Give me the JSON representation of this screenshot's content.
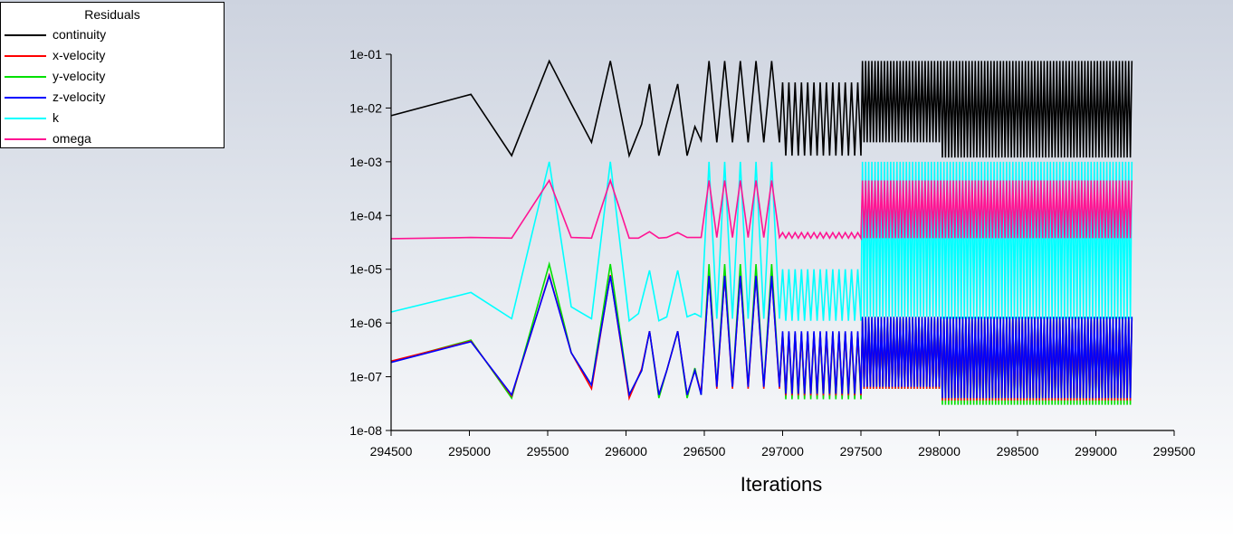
{
  "legend": {
    "title": "Residuals",
    "items": [
      {
        "label": "continuity",
        "color": "#000000"
      },
      {
        "label": "x-velocity",
        "color": "#ff0000"
      },
      {
        "label": "y-velocity",
        "color": "#00e000"
      },
      {
        "label": "z-velocity",
        "color": "#0000ff"
      },
      {
        "label": "k",
        "color": "#00ffff"
      },
      {
        "label": "omega",
        "color": "#ff1493"
      }
    ]
  },
  "chart_data": {
    "type": "line",
    "title": "Residuals",
    "xlabel": "Iterations",
    "ylabel": "",
    "yscale": "log",
    "xlim": [
      294500,
      299500
    ],
    "ylim": [
      1e-08,
      0.1
    ],
    "xticks": [
      "294500",
      "295000",
      "295500",
      "296000",
      "296500",
      "297000",
      "297500",
      "298000",
      "298500",
      "299000",
      "299500"
    ],
    "yticks": [
      "1e-01",
      "1e-02",
      "1e-03",
      "1e-04",
      "1e-05",
      "1e-06",
      "1e-07",
      "1e-08"
    ],
    "x_end": 299230,
    "series": [
      {
        "name": "continuity",
        "color": "#000000",
        "x": [
          294500,
          295010,
          295270,
          295510,
          295650,
          295780,
          295900,
          296020,
          296100,
          296150,
          296210,
          296260,
          296330,
          296390,
          296440,
          296480
        ],
        "values": [
          0.0072,
          0.018,
          0.0013,
          0.075,
          0.012,
          0.0023,
          0.075,
          0.0013,
          0.005,
          0.028,
          0.0013,
          0.005,
          0.028,
          0.0013,
          0.0045,
          0.0025
        ],
        "osc": [
          {
            "x0": 296480,
            "x1": 296980,
            "period": 100,
            "hi": 0.075,
            "lo": 0.0023
          },
          {
            "x0": 296980,
            "x1": 297500,
            "period": 40,
            "hi": 0.03,
            "lo": 0.0013
          },
          {
            "x0": 297500,
            "x1": 298000,
            "period": 20,
            "hi": 0.075,
            "lo": 0.0023
          },
          {
            "x0": 298000,
            "x1": 299230,
            "period": 20,
            "hi": 0.075,
            "lo": 0.0012
          }
        ]
      },
      {
        "name": "x-velocity",
        "color": "#ff0000",
        "x": [
          294500,
          295010,
          295270,
          295510,
          295650,
          295780,
          295900,
          296020,
          296100,
          296150,
          296210,
          296260,
          296330,
          296390,
          296440,
          296480
        ],
        "values": [
          1.95e-07,
          4.6e-07,
          4.4e-08,
          7.8e-06,
          2.8e-07,
          6e-08,
          7.8e-06,
          4e-08,
          1.4e-07,
          7e-07,
          4.6e-08,
          1.3e-07,
          7e-07,
          4.6e-08,
          1.3e-07,
          5e-08
        ],
        "osc": [
          {
            "x0": 296480,
            "x1": 296980,
            "period": 100,
            "hi": 7.5e-06,
            "lo": 6e-08
          },
          {
            "x0": 296980,
            "x1": 297500,
            "period": 40,
            "hi": 6.5e-07,
            "lo": 4.5e-08
          },
          {
            "x0": 297500,
            "x1": 298000,
            "period": 20,
            "hi": 1.2e-06,
            "lo": 6e-08
          },
          {
            "x0": 298000,
            "x1": 299230,
            "period": 20,
            "hi": 1.2e-06,
            "lo": 3.6e-08
          }
        ]
      },
      {
        "name": "y-velocity",
        "color": "#00e000",
        "x": [
          294500,
          295010,
          295270,
          295510,
          295650,
          295780,
          295900,
          296020,
          296100,
          296150,
          296210,
          296260,
          296330,
          296390,
          296440,
          296480
        ],
        "values": [
          1.9e-07,
          4.8e-07,
          4e-08,
          1.25e-05,
          2.8e-07,
          7e-08,
          1.25e-05,
          4.6e-08,
          1.3e-07,
          7e-07,
          4e-08,
          1.3e-07,
          7e-07,
          4e-08,
          1.45e-07,
          4.6e-08
        ],
        "osc": [
          {
            "x0": 296480,
            "x1": 296980,
            "period": 100,
            "hi": 1.25e-05,
            "lo": 6.5e-08
          },
          {
            "x0": 296980,
            "x1": 297500,
            "period": 40,
            "hi": 6.5e-07,
            "lo": 3.8e-08
          },
          {
            "x0": 297500,
            "x1": 298000,
            "period": 20,
            "hi": 1.3e-06,
            "lo": 6e-08
          },
          {
            "x0": 298000,
            "x1": 299230,
            "period": 20,
            "hi": 1.3e-06,
            "lo": 3e-08
          }
        ]
      },
      {
        "name": "z-velocity",
        "color": "#0000ff",
        "x": [
          294500,
          295010,
          295270,
          295510,
          295650,
          295780,
          295900,
          296020,
          296100,
          296150,
          296210,
          296260,
          296330,
          296390,
          296440,
          296480
        ],
        "values": [
          1.85e-07,
          4.5e-07,
          4.6e-08,
          7.5e-06,
          2.8e-07,
          7e-08,
          7.5e-06,
          4.6e-08,
          1.3e-07,
          7e-07,
          4.6e-08,
          1.3e-07,
          7e-07,
          4.6e-08,
          1.3e-07,
          4.6e-08
        ],
        "osc": [
          {
            "x0": 296480,
            "x1": 296980,
            "period": 100,
            "hi": 7.5e-06,
            "lo": 6.5e-08
          },
          {
            "x0": 296980,
            "x1": 297500,
            "period": 40,
            "hi": 7e-07,
            "lo": 4.8e-08
          },
          {
            "x0": 297500,
            "x1": 298000,
            "period": 20,
            "hi": 1.3e-06,
            "lo": 6.5e-08
          },
          {
            "x0": 298000,
            "x1": 299230,
            "period": 20,
            "hi": 1.3e-06,
            "lo": 4e-08
          }
        ]
      },
      {
        "name": "k",
        "color": "#00ffff",
        "x": [
          294500,
          295010,
          295270,
          295510,
          295650,
          295780,
          295900,
          296020,
          296080,
          296150,
          296210,
          296260,
          296330,
          296390,
          296440,
          296480
        ],
        "values": [
          1.6e-06,
          3.7e-06,
          1.2e-06,
          0.001,
          2e-06,
          1.2e-06,
          0.001,
          1.1e-06,
          1.5e-06,
          9.5e-06,
          1.1e-06,
          1.3e-06,
          9.5e-06,
          1.3e-06,
          1.5e-06,
          1.3e-06
        ],
        "osc": [
          {
            "x0": 296480,
            "x1": 296980,
            "period": 100,
            "hi": 0.001,
            "lo": 1.2e-06
          },
          {
            "x0": 296980,
            "x1": 297500,
            "period": 40,
            "hi": 1e-05,
            "lo": 1.1e-06
          },
          {
            "x0": 297500,
            "x1": 298000,
            "period": 20,
            "hi": 0.001,
            "lo": 1.3e-06
          },
          {
            "x0": 298000,
            "x1": 299230,
            "period": 20,
            "hi": 0.001,
            "lo": 1.2e-06
          }
        ]
      },
      {
        "name": "omega",
        "color": "#ff1493",
        "x": [
          294500,
          295010,
          295270,
          295510,
          295650,
          295780,
          295900,
          296020,
          296080,
          296150,
          296210,
          296260,
          296330,
          296390,
          296440,
          296480
        ],
        "values": [
          3.7e-05,
          3.9e-05,
          3.8e-05,
          0.00045,
          3.9e-05,
          3.8e-05,
          0.00045,
          3.8e-05,
          3.8e-05,
          5e-05,
          3.8e-05,
          3.9e-05,
          4.8e-05,
          3.9e-05,
          3.9e-05,
          3.9e-05
        ],
        "osc": [
          {
            "x0": 296480,
            "x1": 296980,
            "period": 100,
            "hi": 0.00045,
            "lo": 3.9e-05
          },
          {
            "x0": 296980,
            "x1": 297500,
            "period": 40,
            "hi": 4.8e-05,
            "lo": 3.8e-05
          },
          {
            "x0": 297500,
            "x1": 298000,
            "period": 20,
            "hi": 0.00045,
            "lo": 3.8e-05
          },
          {
            "x0": 298000,
            "x1": 299230,
            "period": 20,
            "hi": 0.00045,
            "lo": 3.8e-05
          }
        ]
      }
    ]
  }
}
